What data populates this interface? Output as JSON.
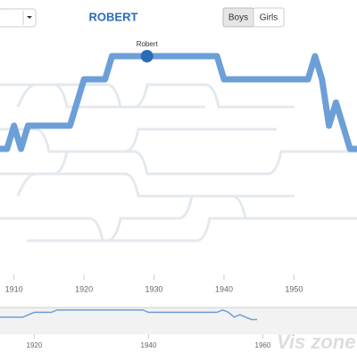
{
  "header": {
    "title": "ROBERT",
    "buttons": [
      "Boys",
      "Girls"
    ]
  },
  "chart_data": {
    "type": "line",
    "x": [
      1908,
      1909,
      1910,
      1911,
      1912,
      1913,
      1914,
      1915,
      1916,
      1917,
      1918,
      1919,
      1920,
      1921,
      1922,
      1923,
      1924,
      1925,
      1926,
      1927,
      1928,
      1929,
      1930,
      1931,
      1932,
      1933,
      1934,
      1935,
      1936,
      1937,
      1938,
      1939,
      1940,
      1941,
      1942,
      1943,
      1944,
      1945,
      1946,
      1947,
      1948,
      1949,
      1950,
      1951,
      1952,
      1953,
      1954,
      1955,
      1956,
      1957,
      1958,
      1959
    ],
    "series": [
      {
        "name": "Robert",
        "color": "#6c9fd8",
        "values": [
          5,
          5,
          4,
          5,
          4,
          4,
          4,
          4,
          4,
          4,
          4,
          3,
          2,
          2,
          2,
          2,
          1,
          1,
          1,
          1,
          1,
          1,
          1,
          1,
          1,
          1,
          1,
          1,
          1,
          1,
          1,
          1,
          2,
          2,
          2,
          2,
          2,
          2,
          2,
          2,
          2,
          2,
          2,
          2,
          2,
          1,
          2,
          4,
          3,
          4,
          5,
          5
        ]
      }
    ],
    "marker": {
      "x": 1929,
      "label": "Robert"
    },
    "xlim": [
      1908,
      1959
    ],
    "xticks": [
      1910,
      1920,
      1930,
      1940,
      1950
    ],
    "ylim": [
      0,
      10
    ],
    "y_reversed": true,
    "navigator": {
      "xlim": [
        1914,
        1976.5
      ],
      "xticks": [
        1920,
        1940,
        1960
      ]
    }
  },
  "watermark": "Vis zone"
}
